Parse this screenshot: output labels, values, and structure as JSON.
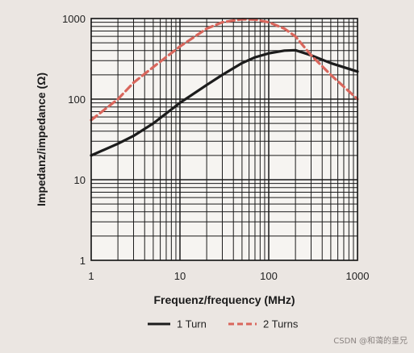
{
  "chart_data": {
    "type": "line",
    "title": "",
    "xlabel": "Frequenz/frequency (MHz)",
    "ylabel": "Impedanz/impedance (Ω)",
    "x_scale": "log",
    "y_scale": "log",
    "xlim": [
      1,
      1000
    ],
    "ylim": [
      1,
      1000
    ],
    "x_ticks": [
      "1",
      "10",
      "100",
      "1000"
    ],
    "y_ticks": [
      "1",
      "10",
      "100",
      "1000"
    ],
    "grid": true,
    "legend_position": "bottom",
    "series": [
      {
        "name": "1 Turn",
        "color": "#1c1c1c",
        "style": "solid",
        "x": [
          1,
          2,
          3,
          5,
          10,
          20,
          30,
          50,
          70,
          100,
          150,
          200,
          300,
          500,
          1000
        ],
        "y": [
          20,
          28,
          35,
          50,
          90,
          150,
          200,
          280,
          330,
          370,
          400,
          405,
          350,
          280,
          220
        ]
      },
      {
        "name": "2 Turns",
        "color": "#d9665c",
        "style": "dashed",
        "x": [
          1,
          2,
          3,
          5,
          10,
          20,
          30,
          50,
          70,
          100,
          150,
          200,
          300,
          500,
          1000
        ],
        "y": [
          55,
          100,
          160,
          250,
          450,
          750,
          900,
          980,
          970,
          900,
          750,
          600,
          350,
          200,
          100
        ]
      }
    ]
  },
  "watermark": "CSDN @和蔼的皇兄"
}
